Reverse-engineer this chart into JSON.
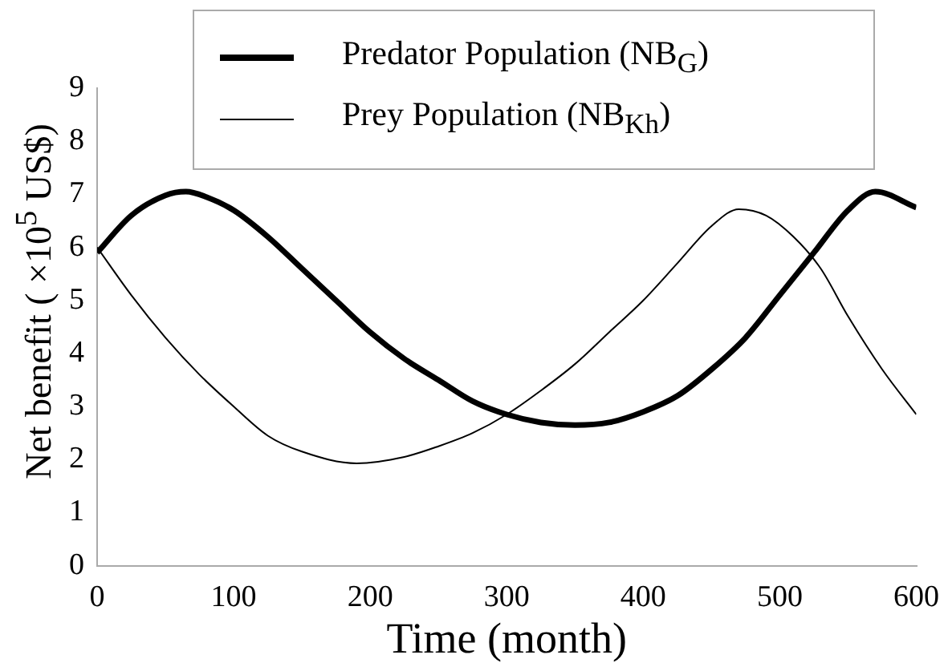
{
  "chart_data": {
    "type": "line",
    "xlabel": "Time (month)",
    "ylabel": "Net benefit ( ×10$^{5}$ US$)",
    "xlim": [
      0,
      600
    ],
    "xticks": [
      0,
      100,
      200,
      300,
      400,
      500,
      600
    ],
    "ylim": [
      0,
      9
    ],
    "yticks": [
      0,
      1,
      2,
      3,
      4,
      5,
      6,
      7,
      8,
      9
    ],
    "grid": false,
    "legend": "top",
    "marker": "none",
    "line_style": "solid",
    "series": [
      {
        "name": "Predator Population (NB$_{G}$)",
        "color": "#000000",
        "x": [
          0,
          25,
          50,
          65,
          80,
          100,
          125,
          150,
          175,
          200,
          225,
          250,
          275,
          300,
          325,
          350,
          375,
          400,
          425,
          450,
          475,
          500,
          525,
          550,
          570,
          600
        ],
        "values": [
          5.9,
          6.6,
          6.98,
          7.05,
          6.95,
          6.7,
          6.2,
          5.6,
          5.0,
          4.4,
          3.9,
          3.5,
          3.1,
          2.85,
          2.7,
          2.65,
          2.7,
          2.9,
          3.2,
          3.7,
          4.3,
          5.1,
          5.9,
          6.7,
          7.05,
          6.75
        ]
      },
      {
        "name": "Prey Population (NB$_{Kh}$)",
        "color": "#000000",
        "x": [
          0,
          25,
          50,
          75,
          100,
          125,
          150,
          190,
          225,
          250,
          275,
          300,
          325,
          350,
          375,
          400,
          425,
          450,
          470,
          490,
          510,
          530,
          550,
          575,
          600
        ],
        "values": [
          6.0,
          5.1,
          4.3,
          3.6,
          3.0,
          2.45,
          2.15,
          1.93,
          2.05,
          2.25,
          2.5,
          2.85,
          3.3,
          3.8,
          4.4,
          5.0,
          5.7,
          6.4,
          6.72,
          6.6,
          6.2,
          5.6,
          4.7,
          3.7,
          2.85
        ]
      }
    ]
  }
}
